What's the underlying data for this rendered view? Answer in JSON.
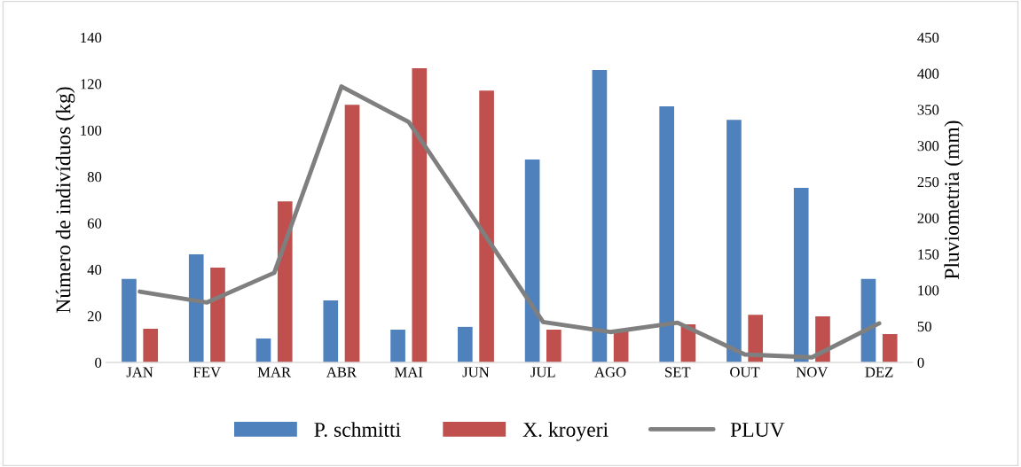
{
  "chart_data": {
    "type": "bar",
    "categories": [
      "JAN",
      "FEV",
      "MAR",
      "ABR",
      "MAI",
      "JUN",
      "JUL",
      "AGO",
      "SET",
      "OUT",
      "NOV",
      "DEZ"
    ],
    "ylabel": "Número de indivíduos (kg)",
    "y2label": "Pluviometria (mm)",
    "ylim": [
      0,
      140
    ],
    "yticks": [
      0,
      20,
      40,
      60,
      80,
      100,
      120,
      140
    ],
    "y2lim": [
      0,
      450
    ],
    "y2ticks": [
      0,
      50,
      100,
      150,
      200,
      250,
      300,
      350,
      400,
      450
    ],
    "legend": "bottom",
    "grid": false,
    "series": [
      {
        "name": "P. schmitti",
        "color": "#4f81bd",
        "values": [
          36,
          46.5,
          10.3,
          26.7,
          14.1,
          15.3,
          87.4,
          125.9,
          110.3,
          104.5,
          75.2,
          36
        ]
      },
      {
        "name": "X. kroyeri",
        "color": "#c0504d",
        "values": [
          14.5,
          40.8,
          69.4,
          111,
          126.7,
          117.1,
          14.1,
          14,
          16.4,
          20.5,
          19.8,
          12.2
        ]
      },
      {
        "name": "PLUV",
        "color": "#7f7f7f",
        "type": "line",
        "axis": "y2",
        "values": [
          98,
          83,
          124,
          382,
          333,
          195,
          56,
          42,
          55,
          11,
          7,
          54
        ]
      }
    ]
  }
}
